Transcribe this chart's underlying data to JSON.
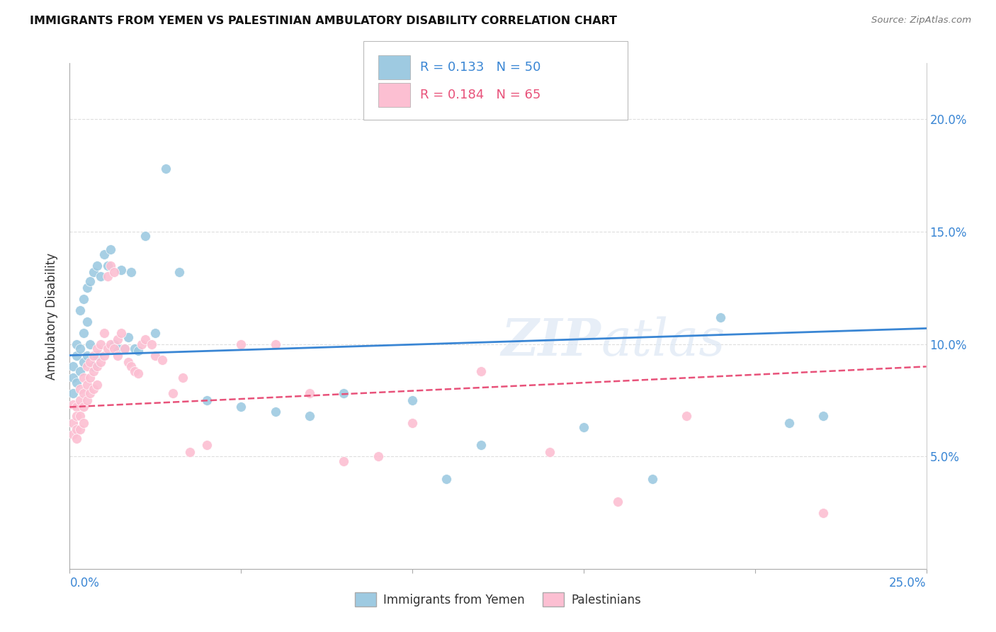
{
  "title": "IMMIGRANTS FROM YEMEN VS PALESTINIAN AMBULATORY DISABILITY CORRELATION CHART",
  "source": "Source: ZipAtlas.com",
  "ylabel": "Ambulatory Disability",
  "legend1_R": "0.133",
  "legend1_N": "50",
  "legend2_R": "0.184",
  "legend2_N": "65",
  "color_blue": "#9ecae1",
  "color_pink": "#fcbfd2",
  "color_blue_line": "#3a86d4",
  "color_pink_line": "#e8527a",
  "watermark": "ZIPatlas",
  "yemen_x": [
    0.001,
    0.001,
    0.001,
    0.002,
    0.002,
    0.002,
    0.003,
    0.003,
    0.003,
    0.004,
    0.004,
    0.004,
    0.005,
    0.005,
    0.005,
    0.006,
    0.006,
    0.007,
    0.007,
    0.008,
    0.008,
    0.009,
    0.01,
    0.011,
    0.012,
    0.013,
    0.014,
    0.015,
    0.016,
    0.017,
    0.018,
    0.019,
    0.02,
    0.022,
    0.025,
    0.028,
    0.032,
    0.04,
    0.05,
    0.06,
    0.07,
    0.08,
    0.1,
    0.11,
    0.12,
    0.15,
    0.17,
    0.19,
    0.21,
    0.22
  ],
  "yemen_y": [
    0.09,
    0.085,
    0.078,
    0.095,
    0.1,
    0.083,
    0.115,
    0.098,
    0.088,
    0.12,
    0.105,
    0.092,
    0.125,
    0.11,
    0.095,
    0.128,
    0.1,
    0.132,
    0.09,
    0.135,
    0.095,
    0.13,
    0.14,
    0.135,
    0.142,
    0.1,
    0.098,
    0.133,
    0.098,
    0.103,
    0.132,
    0.098,
    0.097,
    0.148,
    0.105,
    0.178,
    0.132,
    0.075,
    0.072,
    0.07,
    0.068,
    0.078,
    0.075,
    0.04,
    0.055,
    0.063,
    0.04,
    0.112,
    0.065,
    0.068
  ],
  "pal_x": [
    0.001,
    0.001,
    0.001,
    0.002,
    0.002,
    0.002,
    0.002,
    0.003,
    0.003,
    0.003,
    0.003,
    0.004,
    0.004,
    0.004,
    0.004,
    0.005,
    0.005,
    0.005,
    0.006,
    0.006,
    0.006,
    0.007,
    0.007,
    0.007,
    0.008,
    0.008,
    0.008,
    0.009,
    0.009,
    0.01,
    0.01,
    0.011,
    0.011,
    0.012,
    0.012,
    0.013,
    0.013,
    0.014,
    0.014,
    0.015,
    0.016,
    0.017,
    0.018,
    0.019,
    0.02,
    0.021,
    0.022,
    0.024,
    0.025,
    0.027,
    0.03,
    0.033,
    0.035,
    0.04,
    0.05,
    0.06,
    0.07,
    0.08,
    0.09,
    0.1,
    0.12,
    0.14,
    0.16,
    0.18,
    0.22
  ],
  "pal_y": [
    0.073,
    0.065,
    0.06,
    0.072,
    0.068,
    0.062,
    0.058,
    0.08,
    0.075,
    0.068,
    0.062,
    0.085,
    0.078,
    0.072,
    0.065,
    0.09,
    0.082,
    0.075,
    0.092,
    0.085,
    0.078,
    0.095,
    0.088,
    0.08,
    0.098,
    0.09,
    0.082,
    0.1,
    0.092,
    0.105,
    0.095,
    0.13,
    0.098,
    0.135,
    0.1,
    0.132,
    0.098,
    0.102,
    0.095,
    0.105,
    0.098,
    0.092,
    0.09,
    0.088,
    0.087,
    0.1,
    0.102,
    0.1,
    0.095,
    0.093,
    0.078,
    0.085,
    0.052,
    0.055,
    0.1,
    0.1,
    0.078,
    0.048,
    0.05,
    0.065,
    0.088,
    0.052,
    0.03,
    0.068,
    0.025
  ],
  "xlim": [
    0,
    0.25
  ],
  "ylim": [
    0,
    0.225
  ],
  "yticks": [
    0.05,
    0.1,
    0.15,
    0.2
  ],
  "ytick_labels": [
    "5.0%",
    "10.0%",
    "15.0%",
    "20.0%"
  ]
}
